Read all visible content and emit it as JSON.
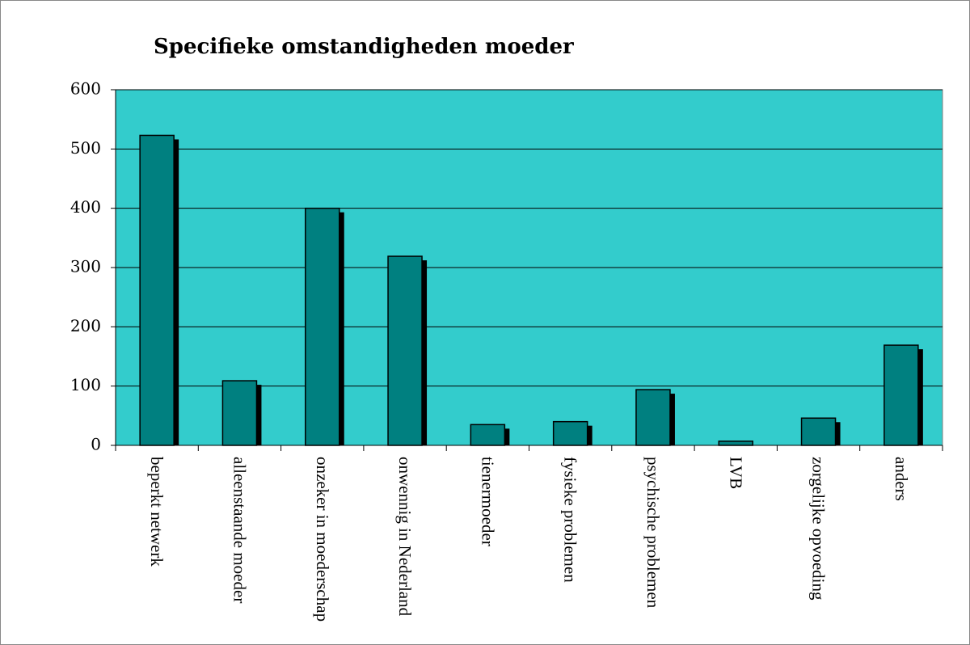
{
  "chart_data": {
    "type": "bar",
    "title": "Specifieke omstandigheden moeder",
    "categories": [
      "beperkt netwerk",
      "alleenstaande moeder",
      "onzeker in moederschap",
      "onwennig in Nederland",
      "tienermoeder",
      "fysieke problemen",
      "psychische problemen",
      "LVB",
      "zorgelijke opvoeding",
      "anders"
    ],
    "values": [
      523,
      109,
      400,
      319,
      35,
      40,
      94,
      7,
      46,
      169
    ],
    "color": "#008080",
    "plot_background": "#33cccc",
    "ylim": [
      0,
      600
    ],
    "yticks": [
      0,
      100,
      200,
      300,
      400,
      500,
      600
    ],
    "grid": true
  }
}
